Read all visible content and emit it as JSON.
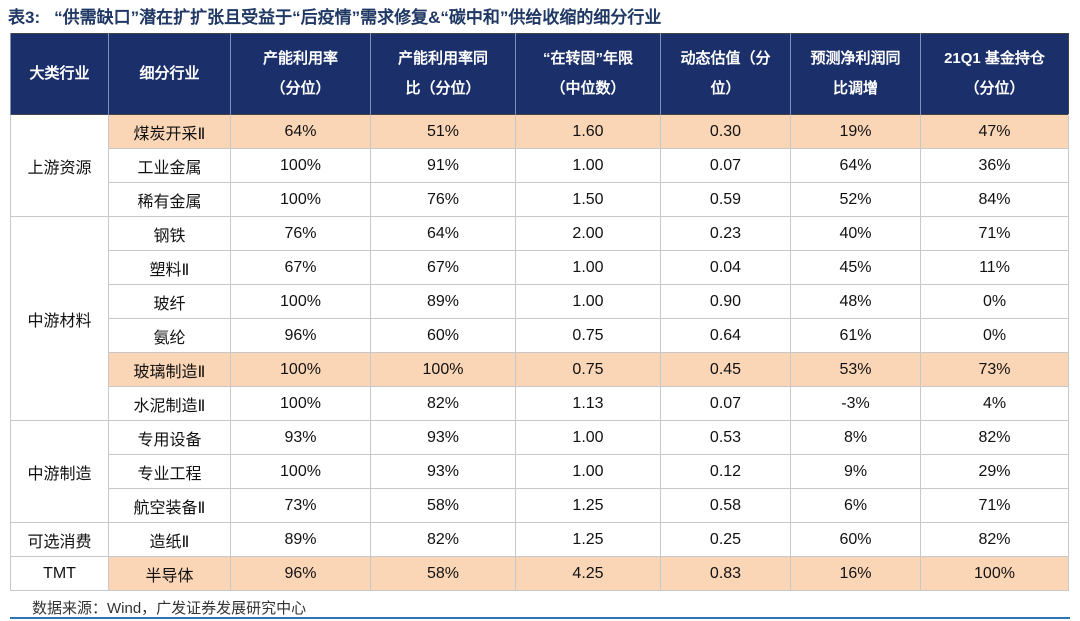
{
  "title": {
    "label": "表3:",
    "text": "“供需缺口”潜在扩扩张且受益于“后疫情”需求修复&“碳中和”供给收缩的细分行业"
  },
  "table": {
    "header": [
      [
        "大类行业"
      ],
      [
        "细分行业"
      ],
      [
        "产能利用率",
        "（分位）"
      ],
      [
        "产能利用率同",
        "比（分位）"
      ],
      [
        "“在转固”年限",
        "（中位数）"
      ],
      [
        "动态估值（分",
        "位）"
      ],
      [
        "预测净利润同",
        "比调增"
      ],
      [
        "21Q1 基金持仓",
        "（分位）"
      ]
    ],
    "groups": [
      {
        "name": "上游资源",
        "rows": [
          {
            "cells": [
              "煤炭开采Ⅱ",
              "64%",
              "51%",
              "1.60",
              "0.30",
              "19%",
              "47%"
            ],
            "highlight": true
          },
          {
            "cells": [
              "工业金属",
              "100%",
              "91%",
              "1.00",
              "0.07",
              "64%",
              "36%"
            ]
          },
          {
            "cells": [
              "稀有金属",
              "100%",
              "76%",
              "1.50",
              "0.59",
              "52%",
              "84%"
            ]
          }
        ]
      },
      {
        "name": "中游材料",
        "rows": [
          {
            "cells": [
              "钢铁",
              "76%",
              "64%",
              "2.00",
              "0.23",
              "40%",
              "71%"
            ]
          },
          {
            "cells": [
              "塑料Ⅱ",
              "67%",
              "67%",
              "1.00",
              "0.04",
              "45%",
              "11%"
            ]
          },
          {
            "cells": [
              "玻纤",
              "100%",
              "89%",
              "1.00",
              "0.90",
              "48%",
              "0%"
            ]
          },
          {
            "cells": [
              "氨纶",
              "96%",
              "60%",
              "0.75",
              "0.64",
              "61%",
              "0%"
            ]
          },
          {
            "cells": [
              "玻璃制造Ⅱ",
              "100%",
              "100%",
              "0.75",
              "0.45",
              "53%",
              "73%"
            ],
            "highlight": true
          },
          {
            "cells": [
              "水泥制造Ⅱ",
              "100%",
              "82%",
              "1.13",
              "0.07",
              "-3%",
              "4%"
            ]
          }
        ]
      },
      {
        "name": "中游制造",
        "rows": [
          {
            "cells": [
              "专用设备",
              "93%",
              "93%",
              "1.00",
              "0.53",
              "8%",
              "82%"
            ]
          },
          {
            "cells": [
              "专业工程",
              "100%",
              "93%",
              "1.00",
              "0.12",
              "9%",
              "29%"
            ]
          },
          {
            "cells": [
              "航空装备Ⅱ",
              "73%",
              "58%",
              "1.25",
              "0.58",
              "6%",
              "71%"
            ]
          }
        ]
      },
      {
        "name": "可选消费",
        "rows": [
          {
            "cells": [
              "造纸Ⅱ",
              "89%",
              "82%",
              "1.25",
              "0.25",
              "60%",
              "82%"
            ]
          }
        ]
      },
      {
        "name": "TMT",
        "rows": [
          {
            "cells": [
              "半导体",
              "96%",
              "58%",
              "4.25",
              "0.83",
              "16%",
              "100%"
            ],
            "highlight": true
          }
        ]
      }
    ]
  },
  "source": "数据来源：Wind，广发证券发展研究中心"
}
